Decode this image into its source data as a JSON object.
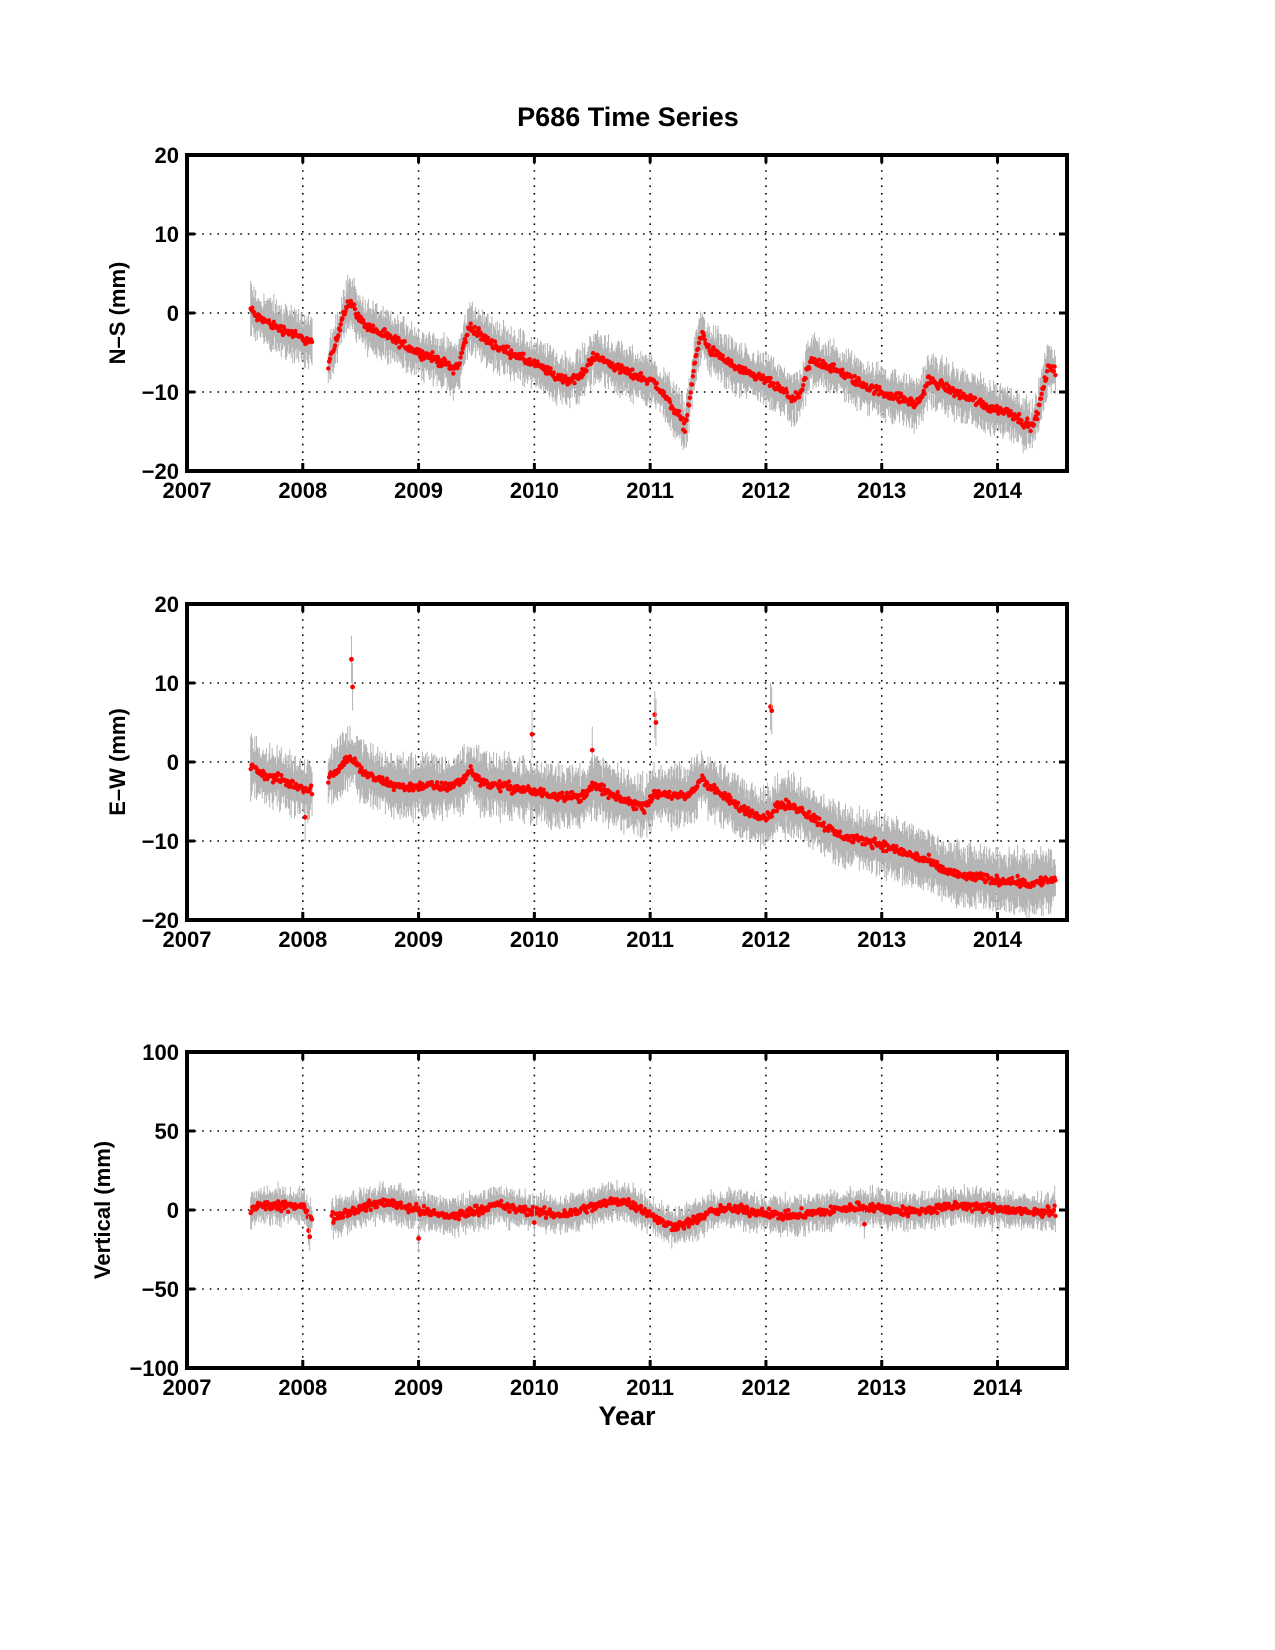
{
  "figure": {
    "title": "P686 Time Series",
    "xlabel": "Year"
  },
  "colors": {
    "point": "#ff0000",
    "error_bar": "#b4b4b4",
    "axes": "#000000",
    "background": "#ffffff"
  },
  "chart_data": [
    {
      "type": "scatter",
      "name": "ns",
      "ylabel": "N–S (mm)",
      "xlabel": "",
      "xlim": [
        2007,
        2014.6
      ],
      "ylim": [
        -20,
        20
      ],
      "xticks": [
        2007,
        2008,
        2009,
        2010,
        2011,
        2012,
        2013,
        2014
      ],
      "xtick_labels": [
        "2007",
        "2008",
        "2009",
        "2010",
        "2011",
        "2012",
        "2013",
        "2014"
      ],
      "yticks": [
        -20,
        -10,
        0,
        10,
        20
      ],
      "ytick_labels": [
        "−20",
        "−10",
        "0",
        "10",
        "20"
      ],
      "grid": true,
      "error_bar_half_width_mm": 2.5,
      "series": [
        {
          "x": [
            2007.55,
            2007.6,
            2007.65,
            2007.7,
            2007.75,
            2007.8,
            2007.85,
            2007.9,
            2007.95,
            2008.0,
            2008.05,
            2008.08,
            2008.22,
            2008.25,
            2008.3,
            2008.35,
            2008.4,
            2008.43,
            2008.5,
            2008.6,
            2008.7,
            2008.8,
            2008.9,
            2009.0,
            2009.1,
            2009.2,
            2009.3,
            2009.35,
            2009.4,
            2009.45,
            2009.5,
            2009.6,
            2009.7,
            2009.8,
            2009.9,
            2010.0,
            2010.1,
            2010.2,
            2010.3,
            2010.4,
            2010.45,
            2010.5,
            2010.6,
            2010.7,
            2010.8,
            2010.9,
            2011.0,
            2011.05,
            2011.1,
            2011.15,
            2011.2,
            2011.25,
            2011.3,
            2011.35,
            2011.4,
            2011.45,
            2011.5,
            2011.6,
            2011.7,
            2011.8,
            2011.9,
            2012.0,
            2012.1,
            2012.2,
            2012.25,
            2012.3,
            2012.35,
            2012.4,
            2012.5,
            2012.6,
            2012.7,
            2012.8,
            2012.9,
            2013.0,
            2013.1,
            2013.2,
            2013.3,
            2013.35,
            2013.4,
            2013.5,
            2013.6,
            2013.7,
            2013.8,
            2013.9,
            2014.0,
            2014.1,
            2014.2,
            2014.25,
            2014.3,
            2014.35,
            2014.4,
            2014.45,
            2014.5
          ],
          "y": [
            0.5,
            -0.5,
            -0.8,
            -1.2,
            -1.6,
            -2.0,
            -2.2,
            -2.5,
            -3.0,
            -3.2,
            -3.5,
            -3.8,
            -6.5,
            -5.5,
            -3.0,
            0.0,
            1.5,
            1.0,
            -1.0,
            -2.0,
            -2.8,
            -3.5,
            -4.2,
            -5.0,
            -5.5,
            -6.2,
            -7.0,
            -6.5,
            -3.5,
            -1.5,
            -2.5,
            -3.5,
            -4.5,
            -5.0,
            -5.8,
            -6.5,
            -7.2,
            -8.2,
            -8.5,
            -8.0,
            -7.0,
            -5.5,
            -6.0,
            -6.8,
            -7.5,
            -8.0,
            -8.5,
            -9.0,
            -10.0,
            -11.0,
            -12.0,
            -13.0,
            -14.5,
            -10.0,
            -5.0,
            -2.5,
            -4.5,
            -5.5,
            -6.5,
            -7.5,
            -8.0,
            -8.5,
            -9.5,
            -10.5,
            -10.8,
            -10.5,
            -7.5,
            -6.0,
            -6.5,
            -7.2,
            -8.0,
            -8.8,
            -9.5,
            -10.0,
            -10.5,
            -11.0,
            -11.5,
            -10.5,
            -8.5,
            -9.0,
            -9.8,
            -10.5,
            -11.0,
            -11.8,
            -12.2,
            -12.5,
            -13.5,
            -14.0,
            -14.5,
            -12.5,
            -9.0,
            -6.5,
            -7.5
          ]
        }
      ]
    },
    {
      "type": "scatter",
      "name": "ew",
      "ylabel": "E–W (mm)",
      "xlabel": "",
      "xlim": [
        2007,
        2014.6
      ],
      "ylim": [
        -20,
        20
      ],
      "xticks": [
        2007,
        2008,
        2009,
        2010,
        2011,
        2012,
        2013,
        2014
      ],
      "xtick_labels": [
        "2007",
        "2008",
        "2009",
        "2010",
        "2011",
        "2012",
        "2013",
        "2014"
      ],
      "yticks": [
        -20,
        -10,
        0,
        10,
        20
      ],
      "ytick_labels": [
        "−20",
        "−10",
        "0",
        "10",
        "20"
      ],
      "grid": true,
      "error_bar_half_width_mm": 3,
      "series": [
        {
          "x": [
            2007.55,
            2007.6,
            2007.65,
            2007.7,
            2007.75,
            2007.8,
            2007.85,
            2007.9,
            2007.95,
            2008.0,
            2008.05,
            2008.08,
            2008.22,
            2008.25,
            2008.3,
            2008.35,
            2008.4,
            2008.45,
            2008.5,
            2008.6,
            2008.7,
            2008.8,
            2008.9,
            2009.0,
            2009.1,
            2009.2,
            2009.3,
            2009.4,
            2009.45,
            2009.5,
            2009.6,
            2009.7,
            2009.8,
            2009.9,
            2010.0,
            2010.1,
            2010.2,
            2010.3,
            2010.4,
            2010.5,
            2010.6,
            2010.7,
            2010.8,
            2010.9,
            2010.95,
            2011.0,
            2011.1,
            2011.2,
            2011.3,
            2011.35,
            2011.4,
            2011.45,
            2011.5,
            2011.6,
            2011.7,
            2011.8,
            2011.9,
            2012.0,
            2012.05,
            2012.1,
            2012.2,
            2012.3,
            2012.4,
            2012.5,
            2012.6,
            2012.7,
            2012.8,
            2012.9,
            2013.0,
            2013.1,
            2013.2,
            2013.3,
            2013.4,
            2013.5,
            2013.6,
            2013.7,
            2013.8,
            2013.9,
            2014.0,
            2014.1,
            2014.2,
            2014.3,
            2014.4,
            2014.5
          ],
          "y": [
            -0.5,
            -1.0,
            -1.5,
            -1.8,
            -2.0,
            -2.2,
            -2.5,
            -2.8,
            -3.0,
            -3.2,
            -3.5,
            -3.5,
            -2.5,
            -1.5,
            -1.0,
            0.0,
            0.5,
            0.0,
            -1.0,
            -2.0,
            -2.5,
            -3.0,
            -3.2,
            -3.0,
            -3.0,
            -3.2,
            -3.0,
            -2.0,
            -1.0,
            -2.0,
            -2.8,
            -3.0,
            -3.2,
            -3.5,
            -3.8,
            -4.0,
            -4.2,
            -4.3,
            -4.5,
            -3.0,
            -3.5,
            -4.5,
            -5.0,
            -5.5,
            -5.8,
            -4.5,
            -4.0,
            -4.2,
            -4.5,
            -4.0,
            -3.0,
            -2.0,
            -3.0,
            -4.0,
            -5.0,
            -6.0,
            -6.5,
            -7.0,
            -6.5,
            -5.5,
            -5.5,
            -6.0,
            -7.0,
            -8.0,
            -9.0,
            -9.5,
            -10.0,
            -10.0,
            -10.5,
            -11.0,
            -11.5,
            -12.0,
            -12.5,
            -13.5,
            -14.0,
            -14.5,
            -14.5,
            -14.8,
            -15.0,
            -15.0,
            -15.2,
            -15.5,
            -15.0,
            -15.0
          ]
        }
      ],
      "outliers": {
        "x": [
          2008.42,
          2008.43,
          2009.98,
          2010.5,
          2011.04,
          2011.05,
          2012.04,
          2012.05,
          2008.02
        ],
        "y": [
          13,
          9.5,
          3.5,
          1.5,
          6,
          5,
          7,
          6.5,
          -7
        ]
      }
    },
    {
      "type": "scatter",
      "name": "vertical",
      "ylabel": "Vertical (mm)",
      "xlabel": "Year",
      "xlim": [
        2007,
        2014.6
      ],
      "ylim": [
        -100,
        100
      ],
      "xticks": [
        2007,
        2008,
        2009,
        2010,
        2011,
        2012,
        2013,
        2014
      ],
      "xtick_labels": [
        "2007",
        "2008",
        "2009",
        "2010",
        "2011",
        "2012",
        "2013",
        "2014"
      ],
      "yticks": [
        -100,
        -50,
        0,
        50,
        100
      ],
      "ytick_labels": [
        "−100",
        "−50",
        "0",
        "50",
        "100"
      ],
      "grid": true,
      "error_bar_half_width_mm": 9,
      "series": [
        {
          "x": [
            2007.55,
            2007.6,
            2007.7,
            2007.8,
            2007.9,
            2008.0,
            2008.05,
            2008.08,
            2008.25,
            2008.3,
            2008.4,
            2008.5,
            2008.6,
            2008.7,
            2008.8,
            2008.9,
            2009.0,
            2009.1,
            2009.2,
            2009.3,
            2009.4,
            2009.5,
            2009.6,
            2009.7,
            2009.8,
            2009.9,
            2010.0,
            2010.1,
            2010.2,
            2010.3,
            2010.4,
            2010.5,
            2010.6,
            2010.7,
            2010.8,
            2010.9,
            2011.0,
            2011.1,
            2011.2,
            2011.3,
            2011.4,
            2011.5,
            2011.6,
            2011.7,
            2011.8,
            2011.9,
            2012.0,
            2012.1,
            2012.2,
            2012.3,
            2012.4,
            2012.5,
            2012.6,
            2012.7,
            2012.8,
            2012.9,
            2013.0,
            2013.1,
            2013.2,
            2013.3,
            2013.4,
            2013.5,
            2013.6,
            2013.7,
            2013.8,
            2013.9,
            2014.0,
            2014.1,
            2014.2,
            2014.3,
            2014.4,
            2014.5
          ],
          "y": [
            0,
            2,
            3,
            2,
            3,
            2,
            -3,
            -5,
            -5,
            -3,
            -1,
            1,
            3,
            5,
            4,
            2,
            0,
            -2,
            -3,
            -4,
            -2,
            0,
            2,
            3,
            1,
            0,
            -1,
            -2,
            -3,
            -2,
            0,
            2,
            4,
            6,
            5,
            2,
            -3,
            -8,
            -10,
            -9,
            -6,
            -2,
            0,
            1,
            0,
            -1,
            -2,
            -3,
            -4,
            -3,
            -2,
            -1,
            0,
            1,
            2,
            2,
            1,
            0,
            -1,
            -1,
            0,
            1,
            2,
            3,
            2,
            1,
            1,
            0,
            -1,
            -2,
            -1,
            0
          ]
        }
      ],
      "outliers": {
        "x": [
          2008.05,
          2008.06,
          2009.0,
          2010.0,
          2012.85
        ],
        "y": [
          -13,
          -17,
          -18,
          -8,
          -9
        ]
      }
    }
  ]
}
